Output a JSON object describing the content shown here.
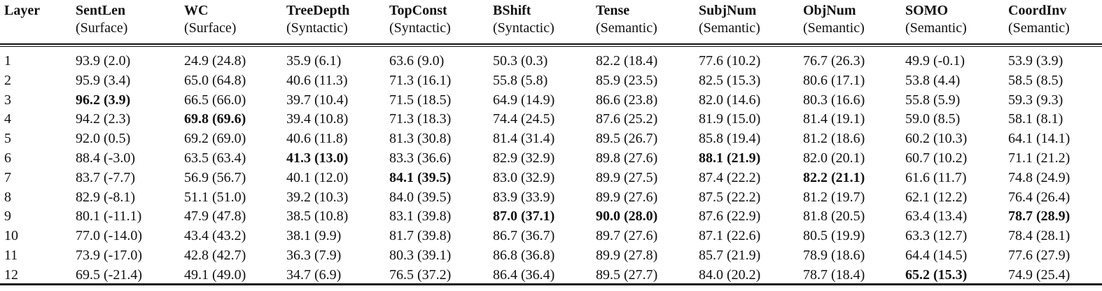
{
  "table": {
    "headers": [
      {
        "name": "Layer",
        "category": ""
      },
      {
        "name": "SentLen",
        "category": "(Surface)"
      },
      {
        "name": "WC",
        "category": "(Surface)"
      },
      {
        "name": "TreeDepth",
        "category": "(Syntactic)"
      },
      {
        "name": "TopConst",
        "category": "(Syntactic)"
      },
      {
        "name": "BShift",
        "category": "(Syntactic)"
      },
      {
        "name": "Tense",
        "category": "(Semantic)"
      },
      {
        "name": "SubjNum",
        "category": "(Semantic)"
      },
      {
        "name": "ObjNum",
        "category": "(Semantic)"
      },
      {
        "name": "SOMO",
        "category": "(Semantic)"
      },
      {
        "name": "CoordInv",
        "category": "(Semantic)"
      }
    ],
    "rows": [
      [
        "1",
        "93.9 (2.0)",
        "24.9 (24.8)",
        "35.9 (6.1)",
        "63.6 (9.0)",
        "50.3 (0.3)",
        "82.2 (18.4)",
        "77.6 (10.2)",
        "76.7 (26.3)",
        "49.9 (-0.1)",
        "53.9 (3.9)"
      ],
      [
        "2",
        "95.9 (3.4)",
        "65.0 (64.8)",
        "40.6 (11.3)",
        "71.3 (16.1)",
        "55.8 (5.8)",
        "85.9 (23.5)",
        "82.5 (15.3)",
        "80.6 (17.1)",
        "53.8 (4.4)",
        "58.5 (8.5)"
      ],
      [
        "3",
        "96.2 (3.9)",
        "66.5 (66.0)",
        "39.7 (10.4)",
        "71.5 (18.5)",
        "64.9 (14.9)",
        "86.6 (23.8)",
        "82.0 (14.6)",
        "80.3 (16.6)",
        "55.8 (5.9)",
        "59.3 (9.3)"
      ],
      [
        "4",
        "94.2 (2.3)",
        "69.8 (69.6)",
        "39.4 (10.8)",
        "71.3 (18.3)",
        "74.4 (24.5)",
        "87.6 (25.2)",
        "81.9 (15.0)",
        "81.4 (19.1)",
        "59.0 (8.5)",
        "58.1 (8.1)"
      ],
      [
        "5",
        "92.0 (0.5)",
        "69.2 (69.0)",
        "40.6 (11.8)",
        "81.3 (30.8)",
        "81.4 (31.4)",
        "89.5 (26.7)",
        "85.8 (19.4)",
        "81.2 (18.6)",
        "60.2 (10.3)",
        "64.1 (14.1)"
      ],
      [
        "6",
        "88.4 (-3.0)",
        "63.5 (63.4)",
        "41.3 (13.0)",
        "83.3 (36.6)",
        "82.9 (32.9)",
        "89.8 (27.6)",
        "88.1 (21.9)",
        "82.0 (20.1)",
        "60.7 (10.2)",
        "71.1 (21.2)"
      ],
      [
        "7",
        "83.7 (-7.7)",
        "56.9 (56.7)",
        "40.1 (12.0)",
        "84.1 (39.5)",
        "83.0 (32.9)",
        "89.9 (27.5)",
        "87.4 (22.2)",
        "82.2 (21.1)",
        "61.6 (11.7)",
        "74.8 (24.9)"
      ],
      [
        "8",
        "82.9 (-8.1)",
        "51.1 (51.0)",
        "39.2 (10.3)",
        "84.0 (39.5)",
        "83.9 (33.9)",
        "89.9 (27.6)",
        "87.5 (22.2)",
        "81.2 (19.7)",
        "62.1 (12.2)",
        "76.4 (26.4)"
      ],
      [
        "9",
        "80.1 (-11.1)",
        "47.9 (47.8)",
        "38.5 (10.8)",
        "83.1 (39.8)",
        "87.0 (37.1)",
        "90.0 (28.0)",
        "87.6 (22.9)",
        "81.8 (20.5)",
        "63.4 (13.4)",
        "78.7 (28.9)"
      ],
      [
        "10",
        "77.0 (-14.0)",
        "43.4 (43.2)",
        "38.1 (9.9)",
        "81.7 (39.8)",
        "86.7 (36.7)",
        "89.7 (27.6)",
        "87.1 (22.6)",
        "80.5 (19.9)",
        "63.3 (12.7)",
        "78.4 (28.1)"
      ],
      [
        "11",
        "73.9 (-17.0)",
        "42.8 (42.7)",
        "36.3 (7.9)",
        "80.3 (39.1)",
        "86.8 (36.8)",
        "89.9 (27.8)",
        "85.7 (21.9)",
        "78.9 (18.6)",
        "64.4 (14.5)",
        "77.6 (27.9)"
      ],
      [
        "12",
        "69.5 (-21.4)",
        "49.1 (49.0)",
        "34.7 (6.9)",
        "76.5 (37.2)",
        "86.4 (36.4)",
        "89.5 (27.7)",
        "84.0 (20.2)",
        "78.7 (18.4)",
        "65.2 (15.3)",
        "74.9 (25.4)"
      ]
    ],
    "bold_layer_by_column": [
      null,
      3,
      4,
      6,
      7,
      9,
      9,
      6,
      7,
      12,
      9
    ]
  }
}
